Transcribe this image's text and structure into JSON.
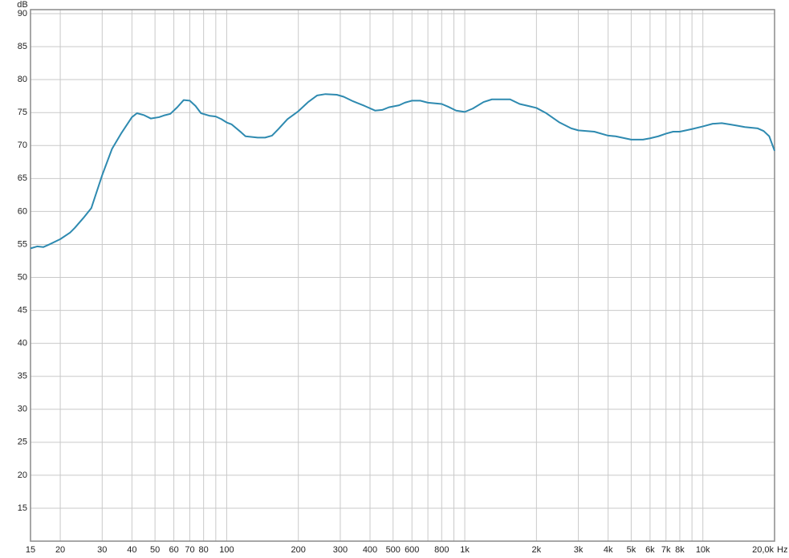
{
  "chart_data": {
    "type": "line",
    "x_label": "Hz",
    "y_label": "dB",
    "log_x": true,
    "grid": true,
    "xlim": [
      15,
      20000
    ],
    "ylim": [
      10,
      90
    ],
    "xticks": [
      15,
      20,
      30,
      40,
      50,
      60,
      70,
      80,
      100,
      200,
      300,
      400,
      500,
      600,
      800,
      {
        "value": 1000,
        "label": "1k"
      },
      {
        "value": 2000,
        "label": "2k"
      },
      {
        "value": 3000,
        "label": "3k"
      },
      {
        "value": 4000,
        "label": "4k"
      },
      {
        "value": 5000,
        "label": "5k"
      },
      {
        "value": 6000,
        "label": "6k"
      },
      {
        "value": 7000,
        "label": "7k"
      },
      {
        "value": 8000,
        "label": "8k"
      },
      {
        "value": 10000,
        "label": "10k"
      },
      {
        "value": 20000,
        "label": "20,0k"
      }
    ],
    "x_minor_grid": [
      90,
      700,
      900,
      9000
    ],
    "yticks": [
      15,
      20,
      25,
      30,
      35,
      40,
      45,
      50,
      55,
      60,
      65,
      70,
      75,
      80,
      85,
      90
    ],
    "x": [
      15,
      16,
      17,
      18,
      20,
      22,
      23,
      25,
      27,
      30,
      33,
      36,
      40,
      42,
      45,
      48,
      52,
      55,
      58,
      62,
      66,
      70,
      74,
      78,
      85,
      90,
      95,
      100,
      105,
      115,
      120,
      135,
      145,
      155,
      165,
      180,
      200,
      220,
      240,
      260,
      290,
      310,
      340,
      380,
      420,
      450,
      480,
      530,
      560,
      600,
      650,
      700,
      800,
      850,
      920,
      1000,
      1080,
      1200,
      1300,
      1550,
      1700,
      1850,
      2000,
      2200,
      2500,
      2800,
      3000,
      3500,
      4000,
      4300,
      5000,
      5600,
      6000,
      6500,
      7000,
      7500,
      8000,
      9000,
      10000,
      11000,
      12000,
      13000,
      14000,
      15000,
      17000,
      18000,
      19000,
      20000
    ],
    "series": [
      {
        "color": "#2e8ab0",
        "values": [
          54.4,
          54.7,
          54.6,
          55.0,
          55.8,
          56.8,
          57.5,
          59.0,
          60.5,
          65.5,
          69.5,
          71.8,
          74.3,
          74.9,
          74.6,
          74.1,
          74.3,
          74.6,
          74.8,
          75.8,
          76.9,
          76.8,
          76.0,
          74.9,
          74.5,
          74.4,
          74.0,
          73.5,
          73.2,
          72.0,
          71.4,
          71.2,
          71.2,
          71.5,
          72.5,
          74.0,
          75.2,
          76.6,
          77.6,
          77.8,
          77.7,
          77.4,
          76.7,
          76.0,
          75.3,
          75.4,
          75.8,
          76.1,
          76.5,
          76.8,
          76.8,
          76.5,
          76.3,
          75.9,
          75.3,
          75.1,
          75.6,
          76.6,
          77.0,
          77.0,
          76.3,
          76.0,
          75.7,
          74.9,
          73.5,
          72.6,
          72.3,
          72.1,
          71.5,
          71.4,
          70.9,
          70.9,
          71.1,
          71.4,
          71.8,
          72.1,
          72.1,
          72.5,
          72.9,
          73.3,
          73.4,
          73.2,
          73.0,
          72.8,
          72.6,
          72.2,
          71.4,
          69.2
        ]
      }
    ]
  }
}
